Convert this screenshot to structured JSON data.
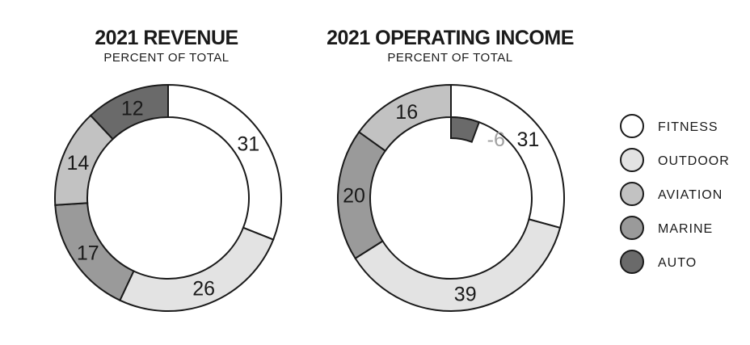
{
  "chart_data": [
    {
      "type": "donut",
      "title": "2021 REVENUE",
      "subtitle": "PERCENT OF TOTAL",
      "slices": [
        {
          "category": "FITNESS",
          "value": 31,
          "label": "31"
        },
        {
          "category": "OUTDOOR",
          "value": 26,
          "label": "26"
        },
        {
          "category": "MARINE",
          "value": 17,
          "label": "17"
        },
        {
          "category": "AVIATION",
          "value": 14,
          "label": "14"
        },
        {
          "category": "AUTO",
          "value": 12,
          "label": "12"
        }
      ]
    },
    {
      "type": "donut",
      "title": "2021 OPERATING INCOME",
      "subtitle": "PERCENT OF TOTAL",
      "slices": [
        {
          "category": "FITNESS",
          "value": 31,
          "label": "31"
        },
        {
          "category": "OUTDOOR",
          "value": 39,
          "label": "39"
        },
        {
          "category": "MARINE",
          "value": 20,
          "label": "20"
        },
        {
          "category": "AVIATION",
          "value": 16,
          "label": "16"
        },
        {
          "category": "AUTO",
          "value": -6,
          "label": "-6"
        }
      ]
    }
  ],
  "legend": {
    "position": "right",
    "items": [
      {
        "label": "FITNESS",
        "color": "#ffffff"
      },
      {
        "label": "OUTDOOR",
        "color": "#e3e3e3"
      },
      {
        "label": "AVIATION",
        "color": "#c2c2c2"
      },
      {
        "label": "MARINE",
        "color": "#9a9a9a"
      },
      {
        "label": "AUTO",
        "color": "#6a6a6a"
      }
    ]
  },
  "colors": {
    "FITNESS": "#ffffff",
    "OUTDOOR": "#e3e3e3",
    "AVIATION": "#c2c2c2",
    "MARINE": "#9a9a9a",
    "AUTO": "#6a6a6a",
    "negative_label": "#a0a0a0",
    "stroke": "#1a1a1a"
  }
}
